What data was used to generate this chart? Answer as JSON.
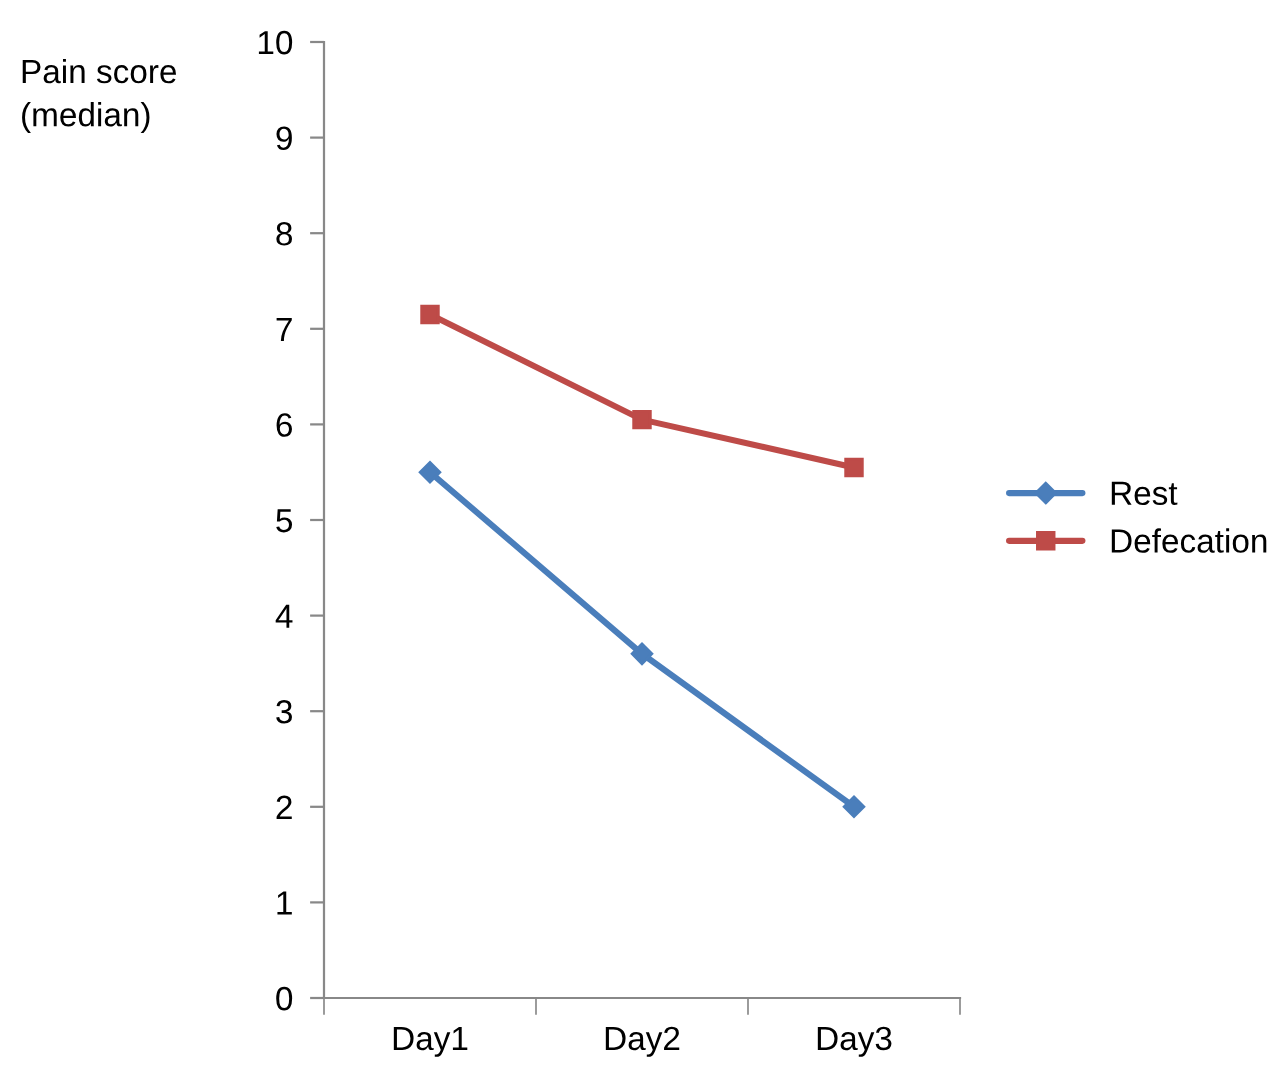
{
  "chart_data": {
    "type": "line",
    "ylabel": "Pain score\n(median)",
    "categories": [
      "Day1",
      "Day2",
      "Day3"
    ],
    "series": [
      {
        "name": "Rest",
        "color": "#4a7ebb",
        "marker": "diamond",
        "values": [
          5.5,
          3.6,
          2.0
        ]
      },
      {
        "name": "Defecation",
        "color": "#be4b48",
        "marker": "square",
        "values": [
          7.15,
          6.05,
          5.55
        ]
      }
    ],
    "ylim": [
      0,
      10
    ],
    "yticks": [
      0,
      1,
      2,
      3,
      4,
      5,
      6,
      7,
      8,
      9,
      10
    ],
    "grid": false,
    "legend": "right",
    "line_style": "solid"
  }
}
